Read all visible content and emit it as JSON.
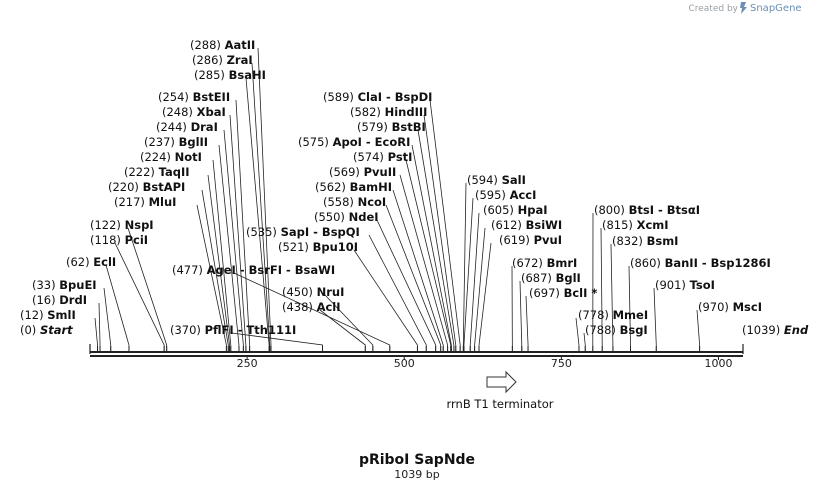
{
  "credit": {
    "prefix": "Created by",
    "brand": "SnapGene"
  },
  "plasmid": {
    "name": "pRiboI SapNde",
    "length_label": "1039 bp",
    "length": 1039
  },
  "colors": {
    "line": "#222222",
    "text": "#111111",
    "arrow": "#333333"
  },
  "axis": {
    "ticks": [
      250,
      500,
      750,
      1000
    ],
    "tick_labels": [
      "250",
      "500",
      "750",
      "1000"
    ]
  },
  "feature": {
    "label": "rrnB T1 terminator",
    "start": 635,
    "end": 680,
    "icon": "right-arrow-icon"
  },
  "enzymes": [
    {
      "pos": "(0)",
      "name": "Start",
      "bp": 0,
      "special": true
    },
    {
      "pos": "(12)",
      "name": "SmlI",
      "bp": 12
    },
    {
      "pos": "(16)",
      "name": "DrdI",
      "bp": 16
    },
    {
      "pos": "(33)",
      "name": "BpuEI",
      "bp": 33
    },
    {
      "pos": "(62)",
      "name": "EclI",
      "bp": 62
    },
    {
      "pos": "(118)",
      "name": "PciI",
      "bp": 118
    },
    {
      "pos": "(122)",
      "name": "NspI",
      "bp": 122
    },
    {
      "pos": "(217)",
      "name": "MluI",
      "bp": 217
    },
    {
      "pos": "(220)",
      "name": "BstAPI",
      "bp": 220
    },
    {
      "pos": "(222)",
      "name": "TaqII",
      "bp": 222
    },
    {
      "pos": "(224)",
      "name": "NotI",
      "bp": 224
    },
    {
      "pos": "(237)",
      "name": "BglII",
      "bp": 237
    },
    {
      "pos": "(244)",
      "name": "DraI",
      "bp": 244
    },
    {
      "pos": "(248)",
      "name": "XbaI",
      "bp": 248
    },
    {
      "pos": "(254)",
      "name": "BstEII",
      "bp": 254
    },
    {
      "pos": "(285)",
      "name": "BsaHI",
      "bp": 285
    },
    {
      "pos": "(286)",
      "name": "ZraI",
      "bp": 286
    },
    {
      "pos": "(288)",
      "name": "AatII",
      "bp": 288
    },
    {
      "pos": "(370)",
      "name": "PflFI",
      "name2": "Tth111I",
      "bp": 370
    },
    {
      "pos": "(438)",
      "name": "AclI",
      "bp": 438
    },
    {
      "pos": "(450)",
      "name": "NruI",
      "bp": 450
    },
    {
      "pos": "(477)",
      "name": "AgeI",
      "name2": "BsrFI",
      "name3": "BsaWI",
      "bp": 477
    },
    {
      "pos": "(521)",
      "name": "Bpu10I",
      "bp": 521
    },
    {
      "pos": "(535)",
      "name": "SapI",
      "name2": "BspQI",
      "bp": 535
    },
    {
      "pos": "(550)",
      "name": "NdeI",
      "bp": 550
    },
    {
      "pos": "(558)",
      "name": "NcoI",
      "bp": 558
    },
    {
      "pos": "(562)",
      "name": "BamHI",
      "bp": 562
    },
    {
      "pos": "(569)",
      "name": "PvuII",
      "bp": 569
    },
    {
      "pos": "(574)",
      "name": "PstI",
      "bp": 574
    },
    {
      "pos": "(575)",
      "name": "ApoI",
      "name2": "EcoRI",
      "bp": 575
    },
    {
      "pos": "(579)",
      "name": "BstBI",
      "bp": 579
    },
    {
      "pos": "(582)",
      "name": "HindIII",
      "bp": 582
    },
    {
      "pos": "(589)",
      "name": "ClaI",
      "name2": "BspDI",
      "bp": 589
    },
    {
      "pos": "(594)",
      "name": "SalI",
      "bp": 594
    },
    {
      "pos": "(595)",
      "name": "AccI",
      "bp": 595
    },
    {
      "pos": "(605)",
      "name": "HpaI",
      "bp": 605
    },
    {
      "pos": "(612)",
      "name": "BsiWI",
      "bp": 612
    },
    {
      "pos": "(619)",
      "name": "PvuI",
      "bp": 619
    },
    {
      "pos": "(672)",
      "name": "BmrI",
      "bp": 672
    },
    {
      "pos": "(687)",
      "name": "BglI",
      "bp": 687
    },
    {
      "pos": "(697)",
      "name": "BclI *",
      "bp": 697
    },
    {
      "pos": "(778)",
      "name": "MmeI",
      "bp": 778
    },
    {
      "pos": "(788)",
      "name": "BsgI",
      "bp": 788
    },
    {
      "pos": "(800)",
      "name": "BtsI",
      "name2": "BtsαI",
      "bp": 800
    },
    {
      "pos": "(815)",
      "name": "XcmI",
      "bp": 815
    },
    {
      "pos": "(832)",
      "name": "BsmI",
      "bp": 832
    },
    {
      "pos": "(860)",
      "name": "BanII",
      "name2": "Bsp1286I",
      "bp": 860
    },
    {
      "pos": "(901)",
      "name": "TsoI",
      "bp": 901
    },
    {
      "pos": "(970)",
      "name": "MscI",
      "bp": 970
    },
    {
      "pos": "(1039)",
      "name": "End",
      "bp": 1039,
      "special": true
    }
  ]
}
